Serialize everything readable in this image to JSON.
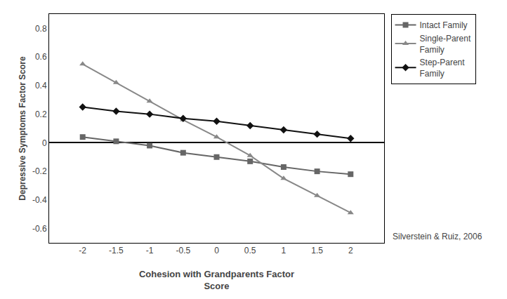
{
  "chart_data": {
    "type": "line",
    "x_label": "Cohesion with Grandparents Factor\nScore",
    "y_label": "Depressive Symptoms Factor Score",
    "x": [
      -2,
      -1.5,
      -1,
      -0.5,
      0,
      0.5,
      1,
      1.5,
      2
    ],
    "series": [
      {
        "name": "Intact Family",
        "color": "#666666",
        "marker": "square",
        "values": [
          0.04,
          0.01,
          -0.02,
          -0.07,
          -0.1,
          -0.13,
          -0.17,
          -0.2,
          -0.22
        ]
      },
      {
        "name": "Single-Parent\nFamily",
        "color": "#888888",
        "marker": "triangle-up",
        "values": [
          0.55,
          0.42,
          0.29,
          0.16,
          0.04,
          -0.09,
          -0.25,
          -0.37,
          -0.49
        ]
      },
      {
        "name": "Step-Parent\nFamily",
        "color": "#111111",
        "marker": "diamond",
        "values": [
          0.25,
          0.22,
          0.2,
          0.17,
          0.15,
          0.12,
          0.09,
          0.06,
          0.03
        ]
      }
    ],
    "xlim": [
      -2.5,
      2.5
    ],
    "xticks": [
      -2,
      -1.5,
      -1,
      -0.5,
      0,
      0.5,
      1,
      1.5,
      2
    ],
    "ylim": [
      -0.7,
      0.9
    ],
    "yticks": [
      -0.6,
      -0.4,
      -0.2,
      0,
      0.2,
      0.4,
      0.6,
      0.8
    ],
    "grid": false,
    "legend": "upper right",
    "annotations": [
      "Silverstein & Ruiz, 2006"
    ]
  }
}
